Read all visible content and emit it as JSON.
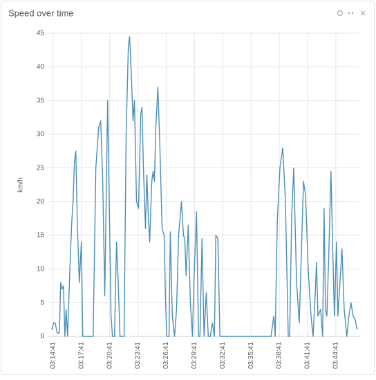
{
  "chart_data": {
    "type": "line",
    "title": "Speed over time",
    "y_label": "km/h",
    "color": "#4a8fb8",
    "grid": true,
    "ylim": [
      0,
      45
    ],
    "yticks": [
      0,
      5,
      10,
      15,
      20,
      25,
      30,
      35,
      40,
      45
    ],
    "xlim": [
      "03:14:11",
      "03:47:11"
    ],
    "xticks": [
      "03:14:41",
      "03:17:41",
      "03:20:41",
      "03:23:41",
      "03:26:41",
      "03:29:41",
      "03:32:41",
      "03:35:41",
      "03:38:41",
      "03:41:41",
      "03:44:41"
    ],
    "x": [
      "03:14:32",
      "03:14:45",
      "03:14:54",
      "03:15:07",
      "03:15:21",
      "03:15:29",
      "03:15:38",
      "03:15:47",
      "03:15:56",
      "03:16:04",
      "03:16:13",
      "03:16:31",
      "03:16:40",
      "03:16:48",
      "03:16:57",
      "03:17:06",
      "03:17:15",
      "03:17:28",
      "03:17:41",
      "03:17:50",
      "03:18:56",
      "03:19:13",
      "03:19:31",
      "03:19:44",
      "03:19:57",
      "03:20:10",
      "03:20:28",
      "03:20:37",
      "03:20:50",
      "03:20:59",
      "03:21:12",
      "03:21:25",
      "03:21:34",
      "03:21:47",
      "03:22:13",
      "03:22:26",
      "03:22:40",
      "03:22:48",
      "03:22:57",
      "03:23:10",
      "03:23:19",
      "03:23:32",
      "03:23:45",
      "03:23:59",
      "03:24:07",
      "03:24:16",
      "03:24:29",
      "03:24:38",
      "03:24:47",
      "03:24:56",
      "03:25:09",
      "03:25:18",
      "03:25:26",
      "03:25:35",
      "03:25:48",
      "03:26:01",
      "03:26:15",
      "03:26:28",
      "03:26:37",
      "03:26:45",
      "03:26:59",
      "03:27:07",
      "03:27:20",
      "03:27:34",
      "03:27:47",
      "03:28:00",
      "03:28:18",
      "03:28:31",
      "03:28:39",
      "03:28:48",
      "03:29:01",
      "03:29:15",
      "03:29:28",
      "03:29:37",
      "03:29:54",
      "03:30:07",
      "03:30:16",
      "03:30:29",
      "03:30:42",
      "03:30:56",
      "03:31:09",
      "03:31:22",
      "03:31:35",
      "03:31:48",
      "03:31:57",
      "03:32:10",
      "03:32:23",
      "03:37:48",
      "03:38:06",
      "03:38:15",
      "03:38:28",
      "03:38:45",
      "03:39:03",
      "03:39:20",
      "03:39:38",
      "03:39:47",
      "03:40:00",
      "03:40:13",
      "03:40:31",
      "03:40:48",
      "03:41:01",
      "03:41:15",
      "03:41:28",
      "03:41:45",
      "03:42:03",
      "03:42:16",
      "03:42:29",
      "03:42:38",
      "03:42:47",
      "03:43:04",
      "03:43:17",
      "03:43:26",
      "03:43:35",
      "03:43:44",
      "03:43:57",
      "03:44:10",
      "03:44:23",
      "03:44:32",
      "03:44:45",
      "03:44:54",
      "03:45:07",
      "03:45:20",
      "03:45:34",
      "03:45:51",
      "03:46:04",
      "03:46:17",
      "03:46:31",
      "03:46:44",
      "03:46:57"
    ],
    "values": [
      1,
      2,
      2,
      0.5,
      0.5,
      8,
      7,
      7.5,
      0,
      4,
      0,
      12,
      17,
      20,
      26,
      27.5,
      17,
      8,
      14,
      0,
      0,
      25,
      31,
      32,
      23,
      6,
      35,
      22,
      3,
      0,
      0,
      14,
      9,
      0,
      0,
      30,
      43,
      44.5,
      40,
      32,
      35,
      20,
      19,
      33,
      34,
      25,
      16,
      24,
      18,
      14,
      23,
      24.5,
      23,
      31,
      37,
      28,
      16,
      15,
      5,
      0,
      0,
      15.5,
      3,
      0,
      4,
      15,
      20,
      15,
      14.5,
      9,
      16.5,
      5,
      0,
      8,
      18.5,
      0,
      0,
      14.5,
      0,
      6.5,
      0,
      0,
      2,
      0,
      15,
      14.5,
      0,
      0,
      3,
      0,
      17,
      25,
      28,
      20,
      0,
      0,
      18,
      25,
      8,
      2,
      12,
      23,
      21,
      10,
      3,
      0,
      6,
      11,
      3,
      4,
      0,
      19,
      4,
      3,
      13,
      24.5,
      11,
      3,
      14,
      3,
      8,
      13,
      4,
      0,
      3,
      5,
      3,
      2.5,
      1
    ]
  }
}
